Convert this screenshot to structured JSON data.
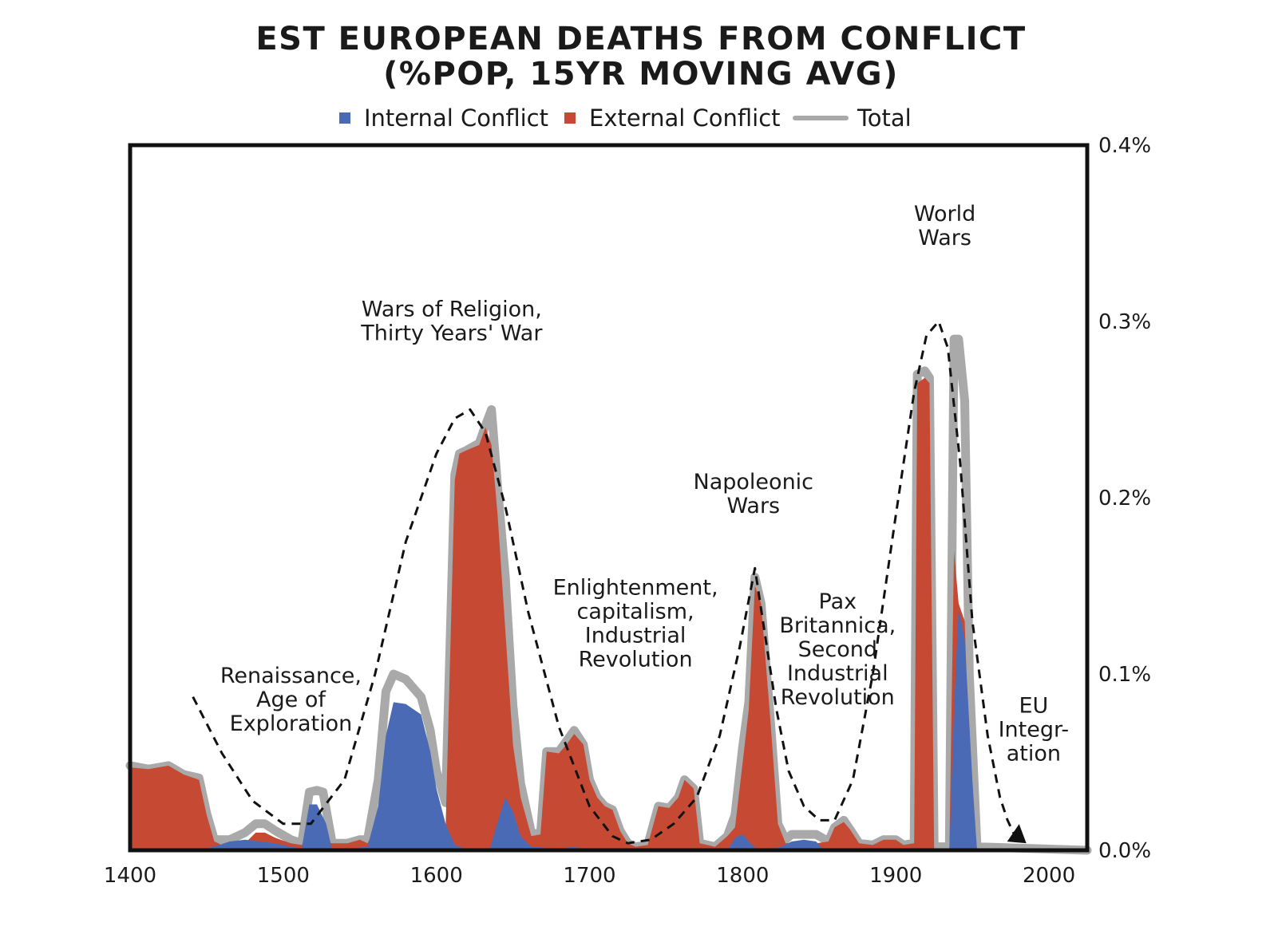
{
  "chart_data": {
    "type": "area",
    "title_lines": [
      "EST EUROPEAN DEATHS FROM CONFLICT",
      "(%POP, 15YR MOVING AVG)"
    ],
    "xlim": [
      1400,
      2025
    ],
    "ylim": [
      0,
      0.4
    ],
    "y_axis_side": "right",
    "x_ticks": [
      1400,
      1500,
      1600,
      1700,
      1800,
      1900,
      2000
    ],
    "x_tick_labels": [
      "1400",
      "1500",
      "1600",
      "1700",
      "1800",
      "1900",
      "2000"
    ],
    "y_ticks": [
      0,
      0.1,
      0.2,
      0.3,
      0.4
    ],
    "y_tick_labels": [
      "0.0%",
      "0.1%",
      "0.2%",
      "0.3%",
      "0.4%"
    ],
    "legend_position": "top",
    "legend": [
      {
        "label": "Internal Conflict",
        "kind": "square",
        "color": "#4a6ab5"
      },
      {
        "label": "External Conflict",
        "kind": "square",
        "color": "#c64a33"
      },
      {
        "label": "Total",
        "kind": "line",
        "color": "#a9a9a9"
      }
    ],
    "series": [
      {
        "name": "Internal Conflict",
        "color": "#4a6ab5",
        "points": [
          [
            1400,
            0.001
          ],
          [
            1412,
            0.0
          ],
          [
            1450,
            0.001
          ],
          [
            1458,
            0.003
          ],
          [
            1465,
            0.005
          ],
          [
            1475,
            0.006
          ],
          [
            1485,
            0.005
          ],
          [
            1495,
            0.004
          ],
          [
            1505,
            0.002
          ],
          [
            1512,
            0.001
          ],
          [
            1517,
            0.026
          ],
          [
            1522,
            0.026
          ],
          [
            1528,
            0.015
          ],
          [
            1532,
            0.0
          ],
          [
            1555,
            0.002
          ],
          [
            1562,
            0.025
          ],
          [
            1567,
            0.065
          ],
          [
            1572,
            0.084
          ],
          [
            1580,
            0.083
          ],
          [
            1590,
            0.077
          ],
          [
            1596,
            0.056
          ],
          [
            1600,
            0.035
          ],
          [
            1606,
            0.015
          ],
          [
            1612,
            0.003
          ],
          [
            1622,
            0.0
          ],
          [
            1635,
            0.001
          ],
          [
            1640,
            0.016
          ],
          [
            1645,
            0.03
          ],
          [
            1650,
            0.022
          ],
          [
            1655,
            0.008
          ],
          [
            1662,
            0.002
          ],
          [
            1680,
            0.001
          ],
          [
            1690,
            0.002
          ],
          [
            1700,
            0.0
          ],
          [
            1790,
            0.0
          ],
          [
            1795,
            0.007
          ],
          [
            1800,
            0.009
          ],
          [
            1805,
            0.004
          ],
          [
            1810,
            0.0
          ],
          [
            1825,
            0.002
          ],
          [
            1832,
            0.005
          ],
          [
            1840,
            0.006
          ],
          [
            1848,
            0.005
          ],
          [
            1852,
            0.001
          ],
          [
            1858,
            0.0
          ],
          [
            1935,
            0.0
          ],
          [
            1938,
            0.08
          ],
          [
            1941,
            0.137
          ],
          [
            1945,
            0.12
          ],
          [
            1950,
            0.04
          ],
          [
            1953,
            0.0
          ],
          [
            2025,
            0.0
          ]
        ]
      },
      {
        "name": "External Conflict",
        "color": "#c64a33",
        "points": [
          [
            1400,
            0.047
          ],
          [
            1412,
            0.046
          ],
          [
            1425,
            0.048
          ],
          [
            1435,
            0.043
          ],
          [
            1445,
            0.04
          ],
          [
            1450,
            0.02
          ],
          [
            1455,
            0.005
          ],
          [
            1465,
            0.001
          ],
          [
            1475,
            0.004
          ],
          [
            1482,
            0.01
          ],
          [
            1488,
            0.01
          ],
          [
            1495,
            0.007
          ],
          [
            1505,
            0.004
          ],
          [
            1512,
            0.003
          ],
          [
            1517,
            0.007
          ],
          [
            1522,
            0.008
          ],
          [
            1526,
            0.005
          ],
          [
            1532,
            0.004
          ],
          [
            1542,
            0.004
          ],
          [
            1550,
            0.006
          ],
          [
            1555,
            0.004
          ],
          [
            1562,
            0.015
          ],
          [
            1567,
            0.025
          ],
          [
            1572,
            0.016
          ],
          [
            1580,
            0.014
          ],
          [
            1590,
            0.01
          ],
          [
            1596,
            0.012
          ],
          [
            1600,
            0.01
          ],
          [
            1606,
            0.012
          ],
          [
            1612,
            0.21
          ],
          [
            1615,
            0.225
          ],
          [
            1620,
            0.227
          ],
          [
            1628,
            0.23
          ],
          [
            1632,
            0.24
          ],
          [
            1636,
            0.23
          ],
          [
            1640,
            0.19
          ],
          [
            1645,
            0.125
          ],
          [
            1650,
            0.06
          ],
          [
            1655,
            0.03
          ],
          [
            1662,
            0.008
          ],
          [
            1668,
            0.009
          ],
          [
            1672,
            0.056
          ],
          [
            1680,
            0.055
          ],
          [
            1685,
            0.06
          ],
          [
            1690,
            0.066
          ],
          [
            1696,
            0.06
          ],
          [
            1700,
            0.04
          ],
          [
            1705,
            0.03
          ],
          [
            1710,
            0.025
          ],
          [
            1715,
            0.023
          ],
          [
            1720,
            0.011
          ],
          [
            1725,
            0.004
          ],
          [
            1730,
            0.002
          ],
          [
            1738,
            0.003
          ],
          [
            1745,
            0.025
          ],
          [
            1752,
            0.024
          ],
          [
            1758,
            0.03
          ],
          [
            1762,
            0.04
          ],
          [
            1768,
            0.035
          ],
          [
            1772,
            0.004
          ],
          [
            1782,
            0.002
          ],
          [
            1790,
            0.008
          ],
          [
            1795,
            0.013
          ],
          [
            1800,
            0.05
          ],
          [
            1804,
            0.08
          ],
          [
            1808,
            0.15
          ],
          [
            1812,
            0.14
          ],
          [
            1818,
            0.075
          ],
          [
            1823,
            0.015
          ],
          [
            1828,
            0.004
          ],
          [
            1832,
            0.004
          ],
          [
            1840,
            0.003
          ],
          [
            1848,
            0.004
          ],
          [
            1856,
            0.005
          ],
          [
            1860,
            0.013
          ],
          [
            1866,
            0.016
          ],
          [
            1870,
            0.012
          ],
          [
            1876,
            0.004
          ],
          [
            1885,
            0.003
          ],
          [
            1892,
            0.006
          ],
          [
            1900,
            0.006
          ],
          [
            1905,
            0.003
          ],
          [
            1912,
            0.004
          ],
          [
            1914,
            0.265
          ],
          [
            1919,
            0.268
          ],
          [
            1922,
            0.265
          ],
          [
            1925,
            0.0
          ],
          [
            1935,
            0.0
          ],
          [
            1938,
            0.17
          ],
          [
            1941,
            0.14
          ],
          [
            1945,
            0.13
          ],
          [
            1948,
            0.05
          ],
          [
            1953,
            0.001
          ],
          [
            2025,
            0.0
          ]
        ]
      },
      {
        "name": "Total",
        "color": "#a9a9a9",
        "points": [
          [
            1400,
            0.048
          ],
          [
            1412,
            0.046
          ],
          [
            1425,
            0.048
          ],
          [
            1435,
            0.043
          ],
          [
            1445,
            0.041
          ],
          [
            1450,
            0.021
          ],
          [
            1455,
            0.006
          ],
          [
            1465,
            0.006
          ],
          [
            1475,
            0.01
          ],
          [
            1482,
            0.015
          ],
          [
            1488,
            0.015
          ],
          [
            1495,
            0.011
          ],
          [
            1505,
            0.006
          ],
          [
            1512,
            0.004
          ],
          [
            1517,
            0.033
          ],
          [
            1522,
            0.034
          ],
          [
            1526,
            0.033
          ],
          [
            1532,
            0.004
          ],
          [
            1542,
            0.004
          ],
          [
            1550,
            0.006
          ],
          [
            1555,
            0.006
          ],
          [
            1562,
            0.04
          ],
          [
            1567,
            0.09
          ],
          [
            1572,
            0.1
          ],
          [
            1580,
            0.097
          ],
          [
            1590,
            0.087
          ],
          [
            1596,
            0.068
          ],
          [
            1600,
            0.045
          ],
          [
            1606,
            0.027
          ],
          [
            1612,
            0.213
          ],
          [
            1615,
            0.225
          ],
          [
            1620,
            0.227
          ],
          [
            1628,
            0.231
          ],
          [
            1632,
            0.241
          ],
          [
            1636,
            0.25
          ],
          [
            1640,
            0.206
          ],
          [
            1645,
            0.155
          ],
          [
            1650,
            0.082
          ],
          [
            1655,
            0.038
          ],
          [
            1662,
            0.01
          ],
          [
            1668,
            0.009
          ],
          [
            1672,
            0.056
          ],
          [
            1680,
            0.056
          ],
          [
            1685,
            0.062
          ],
          [
            1690,
            0.068
          ],
          [
            1696,
            0.06
          ],
          [
            1700,
            0.04
          ],
          [
            1705,
            0.03
          ],
          [
            1710,
            0.025
          ],
          [
            1715,
            0.023
          ],
          [
            1720,
            0.011
          ],
          [
            1725,
            0.004
          ],
          [
            1730,
            0.002
          ],
          [
            1738,
            0.003
          ],
          [
            1745,
            0.025
          ],
          [
            1752,
            0.024
          ],
          [
            1758,
            0.03
          ],
          [
            1762,
            0.04
          ],
          [
            1768,
            0.035
          ],
          [
            1772,
            0.004
          ],
          [
            1782,
            0.002
          ],
          [
            1790,
            0.008
          ],
          [
            1795,
            0.02
          ],
          [
            1800,
            0.059
          ],
          [
            1804,
            0.084
          ],
          [
            1808,
            0.155
          ],
          [
            1812,
            0.14
          ],
          [
            1818,
            0.075
          ],
          [
            1823,
            0.015
          ],
          [
            1828,
            0.006
          ],
          [
            1832,
            0.009
          ],
          [
            1840,
            0.009
          ],
          [
            1848,
            0.009
          ],
          [
            1856,
            0.005
          ],
          [
            1860,
            0.013
          ],
          [
            1866,
            0.017
          ],
          [
            1870,
            0.012
          ],
          [
            1876,
            0.004
          ],
          [
            1885,
            0.003
          ],
          [
            1892,
            0.006
          ],
          [
            1900,
            0.006
          ],
          [
            1905,
            0.003
          ],
          [
            1912,
            0.004
          ],
          [
            1914,
            0.27
          ],
          [
            1919,
            0.272
          ],
          [
            1922,
            0.268
          ],
          [
            1925,
            0.002
          ],
          [
            1935,
            0.002
          ],
          [
            1938,
            0.29
          ],
          [
            1941,
            0.29
          ],
          [
            1945,
            0.255
          ],
          [
            1948,
            0.1
          ],
          [
            1953,
            0.002
          ],
          [
            2025,
            0.0
          ]
        ]
      }
    ],
    "trend_curve": {
      "style": "dashed",
      "points": [
        [
          1441,
          0.087
        ],
        [
          1460,
          0.055
        ],
        [
          1480,
          0.028
        ],
        [
          1500,
          0.015
        ],
        [
          1518,
          0.015
        ],
        [
          1540,
          0.04
        ],
        [
          1560,
          0.1
        ],
        [
          1580,
          0.175
        ],
        [
          1600,
          0.225
        ],
        [
          1612,
          0.245
        ],
        [
          1622,
          0.25
        ],
        [
          1632,
          0.237
        ],
        [
          1645,
          0.195
        ],
        [
          1660,
          0.135
        ],
        [
          1680,
          0.07
        ],
        [
          1700,
          0.025
        ],
        [
          1715,
          0.008
        ],
        [
          1725,
          0.004
        ],
        [
          1740,
          0.006
        ],
        [
          1755,
          0.015
        ],
        [
          1770,
          0.03
        ],
        [
          1785,
          0.065
        ],
        [
          1798,
          0.115
        ],
        [
          1808,
          0.16
        ],
        [
          1815,
          0.12
        ],
        [
          1822,
          0.08
        ],
        [
          1830,
          0.045
        ],
        [
          1840,
          0.025
        ],
        [
          1850,
          0.017
        ],
        [
          1860,
          0.017
        ],
        [
          1872,
          0.04
        ],
        [
          1885,
          0.1
        ],
        [
          1900,
          0.19
        ],
        [
          1912,
          0.26
        ],
        [
          1920,
          0.292
        ],
        [
          1928,
          0.3
        ],
        [
          1934,
          0.285
        ],
        [
          1942,
          0.22
        ],
        [
          1950,
          0.13
        ],
        [
          1960,
          0.065
        ],
        [
          1968,
          0.03
        ],
        [
          1973,
          0.017
        ]
      ],
      "arrow_head": [
        1980,
        0.004
      ]
    },
    "annotations": [
      {
        "lines": [
          "Renaissance,",
          "Age of",
          "Exploration"
        ],
        "x": 1505,
        "y": 0.095
      },
      {
        "lines": [
          "Wars of Religion,",
          "Thirty Years' War"
        ],
        "x": 1610,
        "y": 0.303
      },
      {
        "lines": [
          "Enlightenment,",
          "capitalism,",
          "Industrial",
          "Revolution"
        ],
        "x": 1730,
        "y": 0.145
      },
      {
        "lines": [
          "Napoleonic",
          "Wars"
        ],
        "x": 1807,
        "y": 0.205
      },
      {
        "lines": [
          "Pax",
          "Britannica,",
          "Second",
          "Industrial",
          "Revolution"
        ],
        "x": 1862,
        "y": 0.137
      },
      {
        "lines": [
          "World",
          "Wars"
        ],
        "x": 1932,
        "y": 0.357
      },
      {
        "lines": [
          "EU",
          "Integr-",
          "ation"
        ],
        "x": 1990,
        "y": 0.078
      }
    ]
  }
}
